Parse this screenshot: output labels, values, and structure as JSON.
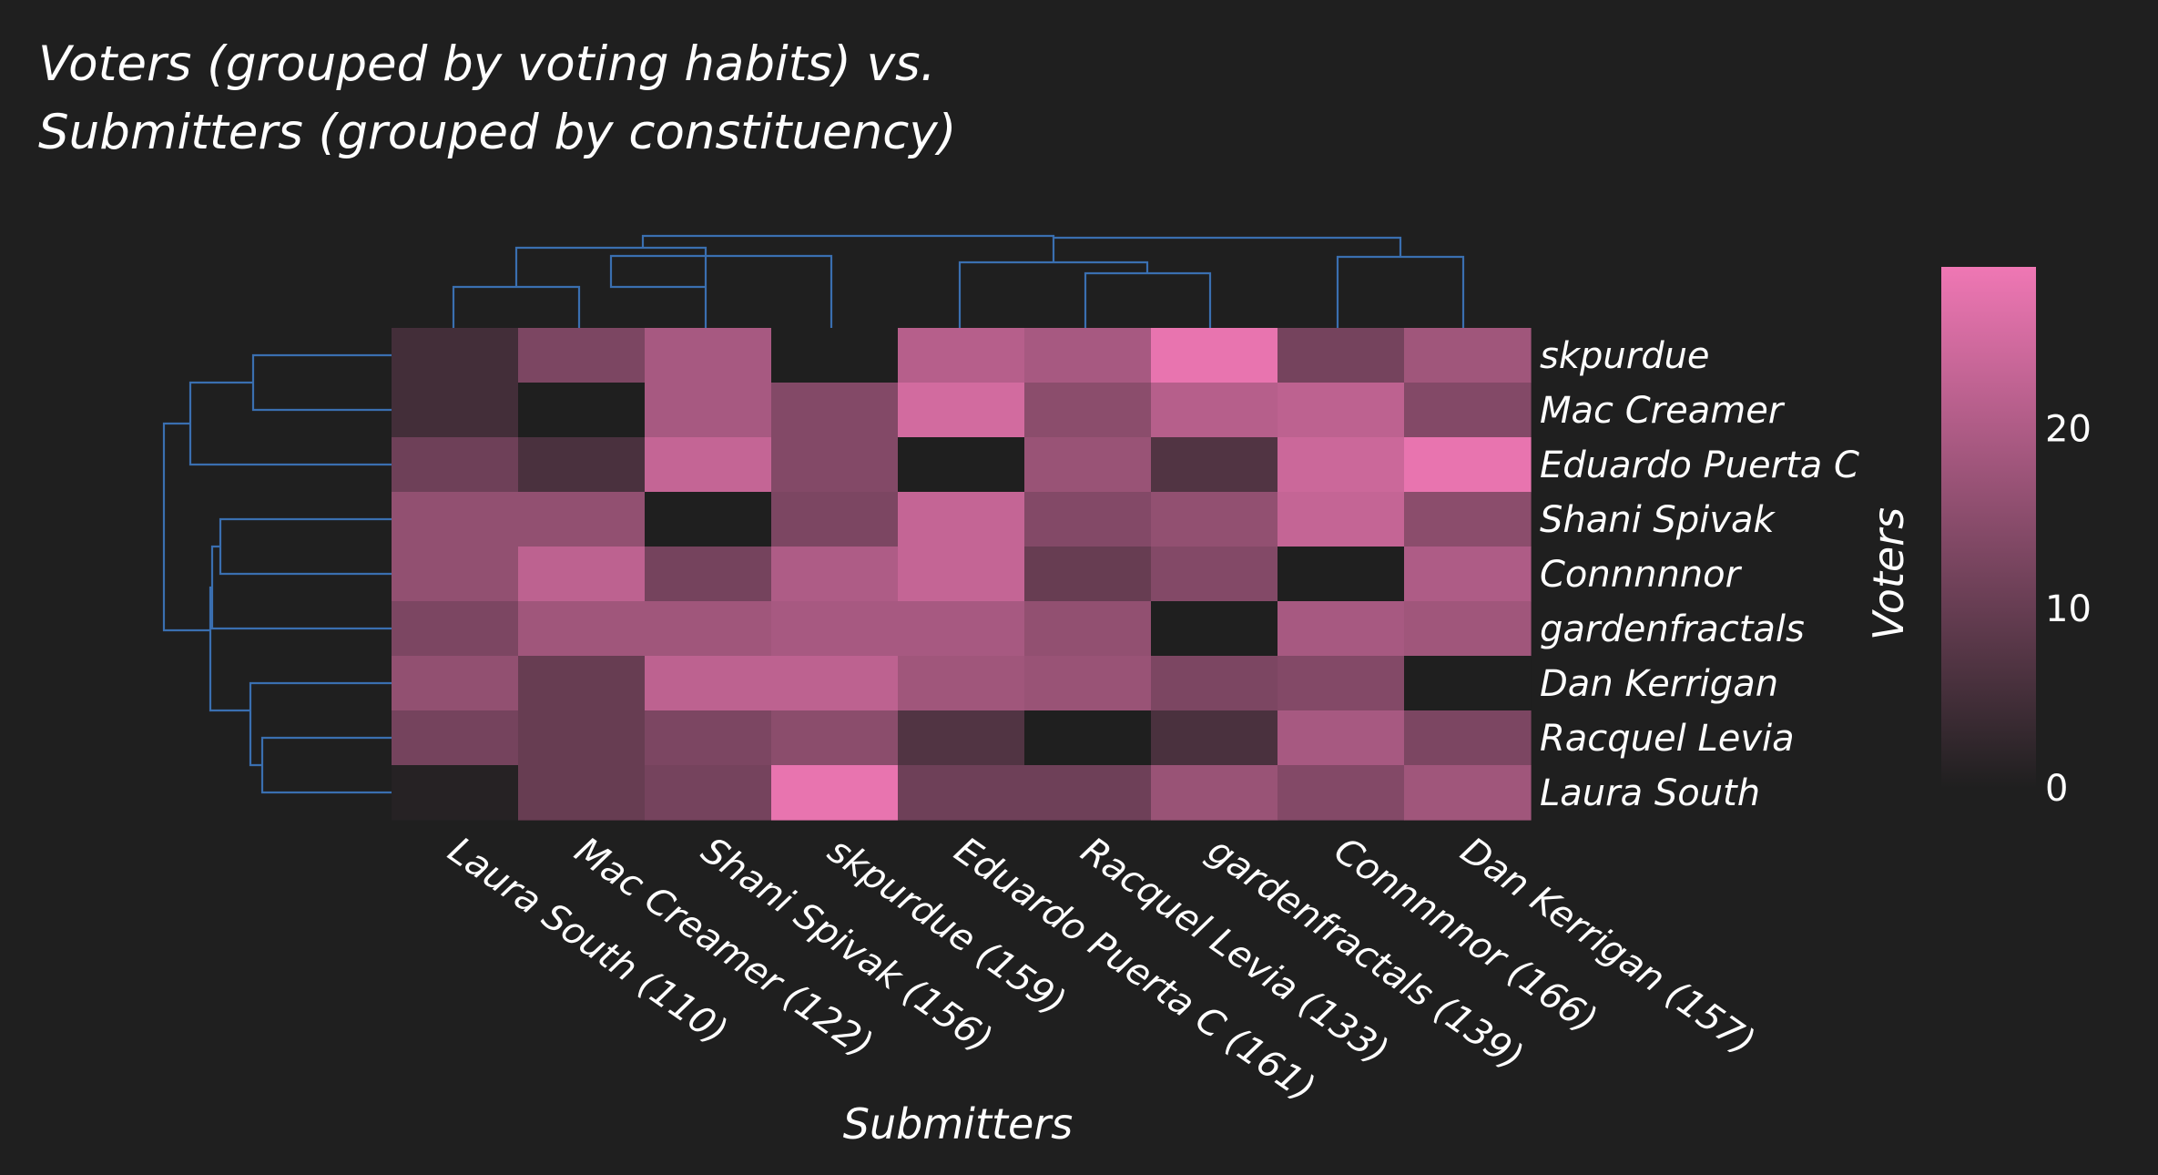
{
  "chart_data": {
    "type": "heatmap",
    "title_lines": [
      "Voters (grouped by voting habits) vs.",
      "Submitters (grouped by constituency)"
    ],
    "xlabel": "Submitters",
    "ylabel": "Voters",
    "columns": [
      "Laura South (110)",
      "Mac Creamer (122)",
      "Shani Spivak (156)",
      "skpurdue (159)",
      "Eduardo Puerta C (161)",
      "Racquel Levia (133)",
      "gardenfractals (139)",
      "Connnnnor (166)",
      "Dan Kerrigan (157)"
    ],
    "rows": [
      "skpurdue",
      "Mac Creamer",
      "Eduardo Puerta C",
      "Shani Spivak",
      "Connnnnor",
      "gardenfractals",
      "Dan Kerrigan",
      "Racquel Levia",
      "Laura South"
    ],
    "values": [
      [
        5,
        13,
        19,
        0,
        21,
        19,
        28,
        12,
        18
      ],
      [
        5,
        0,
        19,
        14,
        25,
        15,
        21,
        22,
        14
      ],
      [
        11,
        6,
        23,
        14,
        0,
        17,
        7,
        24,
        28
      ],
      [
        16,
        16,
        0,
        13,
        23,
        14,
        16,
        23,
        15
      ],
      [
        16,
        22,
        12,
        20,
        23,
        10,
        14,
        0,
        20
      ],
      [
        13,
        18,
        18,
        19,
        19,
        16,
        0,
        19,
        18
      ],
      [
        16,
        10,
        22,
        22,
        18,
        17,
        13,
        14,
        0
      ],
      [
        12,
        10,
        13,
        15,
        7,
        0,
        6,
        19,
        13
      ],
      [
        1,
        10,
        12,
        28,
        11,
        11,
        17,
        14,
        18
      ]
    ],
    "colorbar": {
      "min": 0,
      "max": 29,
      "ticks": [
        0,
        10,
        20
      ]
    },
    "colors": {
      "low": "#1f1f1f",
      "high": "#ef77b4",
      "background": "#1f1f1f",
      "dendrogram": "#3a6fb0"
    }
  }
}
